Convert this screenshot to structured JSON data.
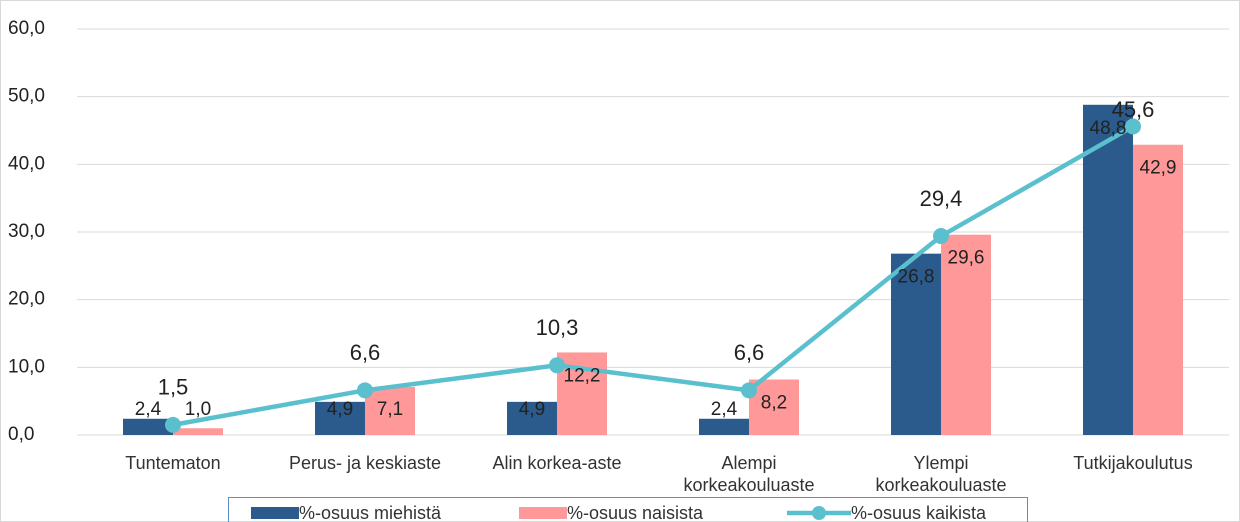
{
  "chart_data": {
    "type": "bar_line",
    "categories": [
      "Tuntematon",
      "Perus- ja keskiaste",
      "Alin korkea-aste",
      "Alempi korkeakouluaste",
      "Ylempi korkeakouluaste",
      "Tutkijakoulutus"
    ],
    "series": [
      {
        "name": "%-osuus miehistä",
        "type": "bar",
        "color": "#2b5a8c",
        "values": [
          2.4,
          4.9,
          4.9,
          2.4,
          26.8,
          48.8
        ],
        "value_labels": [
          "2,4",
          "4,9",
          "4,9",
          "2,4",
          "26,8",
          "48,8"
        ]
      },
      {
        "name": "%-osuus naisista",
        "type": "bar",
        "color": "#ff9999",
        "values": [
          1.0,
          7.1,
          12.2,
          8.2,
          29.6,
          42.9
        ],
        "value_labels": [
          "1,0",
          "7,1",
          "12,2",
          "8,2",
          "29,6",
          "42,9"
        ]
      },
      {
        "name": "%-osuus kaikista",
        "type": "line",
        "color": "#5bc0ce",
        "values": [
          1.5,
          6.6,
          10.3,
          6.6,
          29.4,
          45.6
        ],
        "value_labels": [
          "1,5",
          "6,6",
          "10,3",
          "6,6",
          "29,4",
          "45,6"
        ]
      }
    ],
    "ylim": [
      0,
      60
    ],
    "yticks": [
      {
        "value": 0,
        "label": "0,0"
      },
      {
        "value": 10,
        "label": "10,0"
      },
      {
        "value": 20,
        "label": "20,0"
      },
      {
        "value": 30,
        "label": "30,0"
      },
      {
        "value": 40,
        "label": "40,0"
      },
      {
        "value": 50,
        "label": "50,0"
      },
      {
        "value": 60,
        "label": "60,0"
      }
    ],
    "grid": true
  }
}
